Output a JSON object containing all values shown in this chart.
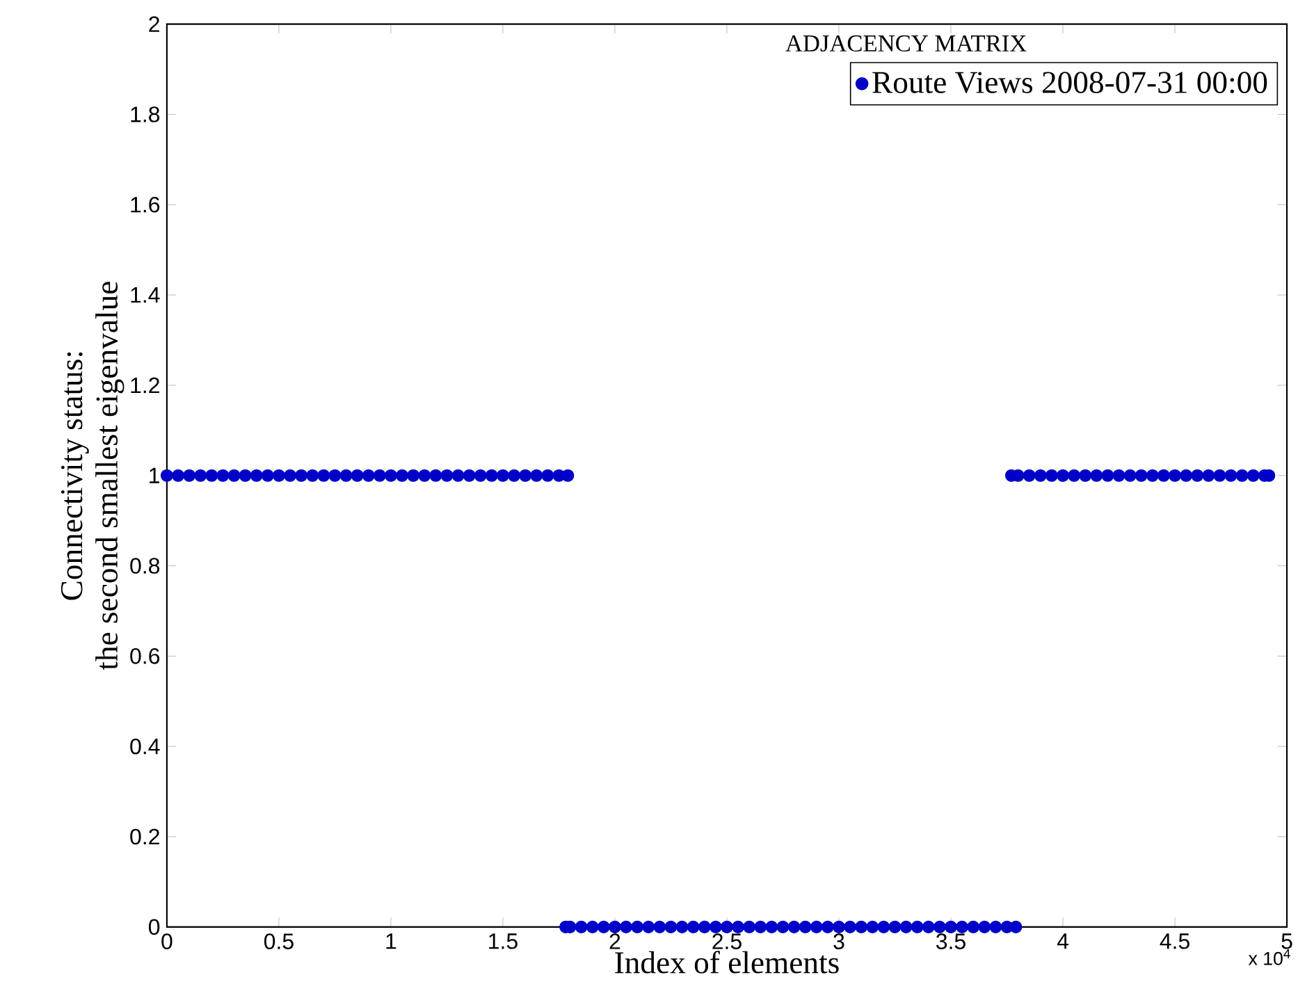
{
  "chart_data": {
    "type": "scatter",
    "legend_title": "ADJACENCY MATRIX",
    "xlabel": "Index of elements",
    "ylabel": [
      "Connectivity status:",
      "the second smallest eigenvalue"
    ],
    "annotations": [
      "x 10$^{4}$"
    ],
    "xlim": [
      0,
      5
    ],
    "ylim": [
      0,
      2
    ],
    "xticks": [
      0,
      0.5,
      1,
      1.5,
      2,
      2.5,
      3,
      3.5,
      4,
      4.5,
      5
    ],
    "yticks": [
      0,
      0.2,
      0.4,
      0.6,
      0.8,
      1,
      1.2,
      1.4,
      1.6,
      1.8,
      2
    ],
    "legend": "top right",
    "marker": "circle",
    "series": [
      {
        "name": "Route Views 2008-07-31 00:00",
        "color": "#0000c8",
        "x": [
          0,
          0.05,
          0.1,
          0.15,
          0.2,
          0.25,
          0.3,
          0.35,
          0.4,
          0.45,
          0.5,
          0.55,
          0.6,
          0.65,
          0.7,
          0.75,
          0.8,
          0.85,
          0.9,
          0.95,
          1,
          1.05,
          1.1,
          1.15,
          1.2,
          1.25,
          1.3,
          1.35,
          1.4,
          1.45,
          1.5,
          1.55,
          1.6,
          1.65,
          1.7,
          1.75,
          1.79,
          1.78,
          1.8,
          1.85,
          1.9,
          1.95,
          2,
          2.05,
          2.1,
          2.15,
          2.2,
          2.25,
          2.3,
          2.35,
          2.4,
          2.45,
          2.5,
          2.55,
          2.6,
          2.65,
          2.7,
          2.75,
          2.8,
          2.85,
          2.9,
          2.95,
          3,
          3.05,
          3.1,
          3.15,
          3.2,
          3.25,
          3.3,
          3.35,
          3.4,
          3.45,
          3.5,
          3.55,
          3.6,
          3.65,
          3.7,
          3.75,
          3.79,
          3.77,
          3.8,
          3.85,
          3.9,
          3.95,
          4,
          4.05,
          4.1,
          4.15,
          4.2,
          4.25,
          4.3,
          4.35,
          4.4,
          4.45,
          4.5,
          4.55,
          4.6,
          4.65,
          4.7,
          4.75,
          4.8,
          4.85,
          4.9,
          4.92
        ],
        "values": [
          1,
          1,
          1,
          1,
          1,
          1,
          1,
          1,
          1,
          1,
          1,
          1,
          1,
          1,
          1,
          1,
          1,
          1,
          1,
          1,
          1,
          1,
          1,
          1,
          1,
          1,
          1,
          1,
          1,
          1,
          1,
          1,
          1,
          1,
          1,
          1,
          1,
          0,
          0,
          0,
          0,
          0,
          0,
          0,
          0,
          0,
          0,
          0,
          0,
          0,
          0,
          0,
          0,
          0,
          0,
          0,
          0,
          0,
          0,
          0,
          0,
          0,
          0,
          0,
          0,
          0,
          0,
          0,
          0,
          0,
          0,
          0,
          0,
          0,
          0,
          0,
          0,
          0,
          0,
          1,
          1,
          1,
          1,
          1,
          1,
          1,
          1,
          1,
          1,
          1,
          1,
          1,
          1,
          1,
          1,
          1,
          1,
          1,
          1,
          1,
          1,
          1,
          1,
          1
        ]
      }
    ]
  }
}
